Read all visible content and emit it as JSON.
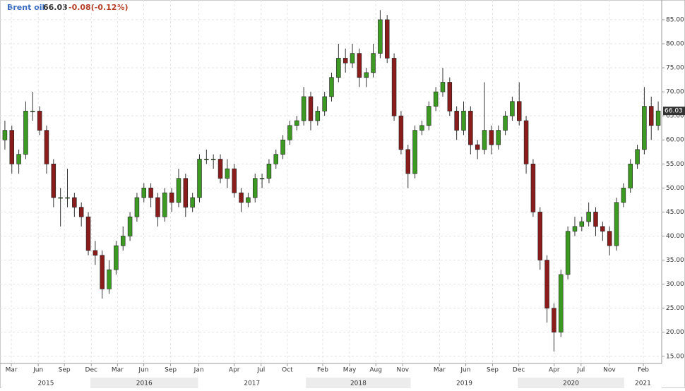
{
  "chart_data": {
    "type": "candlestick",
    "title": "Brent oil",
    "last_change": "-0.08(-0.12%)",
    "up_color": "#3c9a22",
    "down_color": "#8a1c1c",
    "open": [
      60,
      62,
      55,
      57,
      66,
      66,
      62,
      55,
      48,
      48,
      48,
      46,
      44,
      37,
      36,
      29,
      33,
      38,
      40,
      44,
      48,
      50,
      48,
      44,
      49,
      47,
      52,
      46,
      48,
      56,
      56,
      56,
      52,
      54,
      49,
      47,
      48,
      52,
      52,
      55,
      57,
      60,
      63,
      64,
      69,
      64,
      66,
      69,
      73,
      77,
      76,
      78,
      73,
      74,
      78,
      85,
      77,
      65,
      58,
      53,
      62,
      63,
      67,
      70,
      72,
      66,
      62,
      66,
      59,
      58,
      62,
      59,
      62,
      65,
      68,
      64,
      55,
      45,
      35,
      25,
      20,
      32,
      41,
      42,
      43,
      45,
      42,
      41,
      38,
      47,
      50,
      55,
      58,
      67,
      63
    ],
    "high": [
      64,
      63,
      58,
      68,
      70,
      67,
      63,
      56,
      50,
      54,
      49,
      47,
      45,
      39,
      37,
      35,
      39,
      42,
      45,
      49,
      51,
      51,
      49,
      50,
      50,
      54,
      53,
      49,
      57,
      58,
      57,
      57,
      56,
      55,
      50,
      49,
      53,
      53,
      56,
      58,
      61,
      64,
      65,
      71,
      70,
      67,
      70,
      74,
      80,
      79,
      80,
      79,
      75,
      80,
      87,
      86,
      78,
      66,
      59,
      63,
      64,
      68,
      71,
      75,
      73,
      67,
      68,
      67,
      60,
      72,
      63,
      63,
      66,
      69,
      72,
      65,
      56,
      46,
      36,
      26,
      33,
      42,
      44,
      44,
      47,
      46,
      43,
      42,
      48,
      51,
      56,
      59,
      71,
      69,
      68
    ],
    "low": [
      58,
      53,
      53,
      56,
      64,
      61,
      53,
      46,
      42,
      46,
      44,
      42,
      36,
      34,
      27,
      28,
      32,
      37,
      39,
      43,
      47,
      46,
      42,
      43,
      45,
      46,
      44,
      45,
      47,
      55,
      54,
      51,
      50,
      48,
      45,
      46,
      47,
      50,
      51,
      54,
      56,
      59,
      62,
      63,
      62,
      63,
      65,
      68,
      72,
      74,
      75,
      71,
      71,
      73,
      77,
      76,
      64,
      57,
      50,
      52,
      61,
      62,
      66,
      69,
      65,
      60,
      61,
      57,
      56,
      57,
      57,
      58,
      61,
      64,
      63,
      53,
      44,
      33,
      22,
      16,
      19,
      31,
      40,
      41,
      42,
      40,
      39,
      36,
      37,
      46,
      49,
      54,
      57,
      60,
      62
    ],
    "close": [
      62,
      55,
      57,
      66,
      66,
      62,
      55,
      48,
      48,
      48,
      46,
      44,
      37,
      36,
      29,
      33,
      38,
      40,
      44,
      48,
      50,
      48,
      44,
      49,
      47,
      52,
      46,
      48,
      56,
      56,
      56,
      52,
      54,
      49,
      47,
      48,
      52,
      52,
      55,
      57,
      60,
      63,
      64,
      69,
      64,
      66,
      69,
      73,
      77,
      76,
      78,
      73,
      74,
      78,
      85,
      77,
      65,
      58,
      53,
      62,
      63,
      67,
      70,
      72,
      66,
      62,
      66,
      59,
      58,
      62,
      59,
      62,
      65,
      68,
      64,
      55,
      45,
      35,
      25,
      20,
      32,
      41,
      42,
      43,
      45,
      42,
      41,
      38,
      47,
      50,
      55,
      58,
      67,
      63,
      66.03
    ],
    "xlim": [
      0,
      95
    ],
    "ylim": [
      13.5,
      89.1
    ],
    "yticks": [
      {
        "value": 15,
        "label": "15.00"
      },
      {
        "value": 20,
        "label": "20.00"
      },
      {
        "value": 25,
        "label": "25.00"
      },
      {
        "value": 30,
        "label": "30.00"
      },
      {
        "value": 35,
        "label": "35.00"
      },
      {
        "value": 40,
        "label": "40.00"
      },
      {
        "value": 45,
        "label": "45.00"
      },
      {
        "value": 50,
        "label": "50.00"
      },
      {
        "value": 55,
        "label": "55.00"
      },
      {
        "value": 60,
        "label": "60.00"
      },
      {
        "value": 65,
        "label": "65.00"
      },
      {
        "value": 70,
        "label": "70.00"
      },
      {
        "value": 75,
        "label": "75.00"
      },
      {
        "value": 80,
        "label": "80.00"
      },
      {
        "value": 85,
        "label": "85.00"
      }
    ],
    "xticks": [
      {
        "value": 1.43,
        "label": "Mar"
      },
      {
        "value": 5.3,
        "label": "Jun"
      },
      {
        "value": 9.06,
        "label": "Sep"
      },
      {
        "value": 12.93,
        "label": "Dec"
      },
      {
        "value": 16.7,
        "label": "Mar"
      },
      {
        "value": 20.47,
        "label": "Jun"
      },
      {
        "value": 24.34,
        "label": "Sep"
      },
      {
        "value": 28.41,
        "label": "Jan"
      },
      {
        "value": 33.5,
        "label": "Apr"
      },
      {
        "value": 37.37,
        "label": "Jul"
      },
      {
        "value": 41.14,
        "label": "Oct"
      },
      {
        "value": 46.23,
        "label": "Feb"
      },
      {
        "value": 50.1,
        "label": "May"
      },
      {
        "value": 53.87,
        "label": "Aug"
      },
      {
        "value": 57.74,
        "label": "Nov"
      },
      {
        "value": 63.03,
        "label": "Mar"
      },
      {
        "value": 66.8,
        "label": "Jun"
      },
      {
        "value": 70.67,
        "label": "Sep"
      },
      {
        "value": 74.44,
        "label": "Dec"
      },
      {
        "value": 79.53,
        "label": "Apr"
      },
      {
        "value": 83.4,
        "label": "Jul"
      },
      {
        "value": 87.47,
        "label": "Nov"
      },
      {
        "value": 92.36,
        "label": "Feb"
      }
    ],
    "years": [
      {
        "label": "2015",
        "start": 0,
        "end": 12.8
      },
      {
        "label": "2016",
        "start": 12.8,
        "end": 28.3
      },
      {
        "label": "2017",
        "start": 28.3,
        "end": 43.8
      },
      {
        "label": "2018",
        "start": 43.8,
        "end": 58.9
      },
      {
        "label": "2019",
        "start": 58.9,
        "end": 74.3
      },
      {
        "label": "2020",
        "start": 74.3,
        "end": 89.6
      },
      {
        "label": "2021",
        "start": 89.6,
        "end": 95
      }
    ],
    "grid": true
  }
}
